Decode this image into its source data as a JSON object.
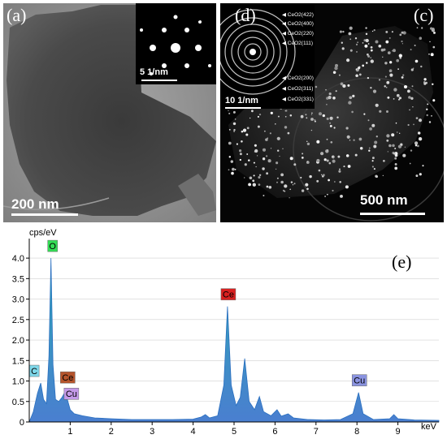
{
  "panel_a": {
    "label": "(a)",
    "scale": "200 nm"
  },
  "panel_b": {
    "label": "(b)",
    "scale": "5 1/nm"
  },
  "panel_c": {
    "label": "(c)",
    "scale": "500 nm"
  },
  "panel_d": {
    "label": "(d)",
    "scale": "10 1/nm",
    "rings": [
      "CeO2(422)",
      "CeO2(400)",
      "CeO2(220)",
      "CeO2(111)",
      "CeO2(200)",
      "CeO2(311)",
      "CeO2(331)"
    ]
  },
  "panel_e": {
    "label": "(e)"
  },
  "chart_data": {
    "type": "line",
    "title": "",
    "ylabel": "cps/eV",
    "xlabel": "keV",
    "xlim": [
      0,
      10
    ],
    "ylim": [
      0,
      4.2
    ],
    "xticks": [
      "1",
      "2",
      "3",
      "4",
      "5",
      "6",
      "7",
      "8",
      "9"
    ],
    "yticks": [
      "0",
      "0.5",
      "1.0",
      "1.5",
      "2.0",
      "2.5",
      "3.0",
      "3.5",
      "4.0"
    ],
    "peaks": [
      {
        "label": "C",
        "x": 0.28,
        "y": 0.95,
        "color": "#7fd8ea"
      },
      {
        "label": "O",
        "x": 0.53,
        "y": 4.0,
        "color": "#33dd55"
      },
      {
        "label": "Ce",
        "x": 0.88,
        "y": 0.75,
        "color": "#b5542c"
      },
      {
        "label": "Cu",
        "x": 0.93,
        "y": 0.55,
        "color": "#c49ae8"
      },
      {
        "label": "Ce",
        "x": 4.84,
        "y": 2.82,
        "color": "#d82020"
      },
      {
        "label": "Cu",
        "x": 8.04,
        "y": 0.72,
        "color": "#8a93e0"
      }
    ],
    "spectrum": [
      [
        0.0,
        0.0
      ],
      [
        0.1,
        0.25
      ],
      [
        0.2,
        0.7
      ],
      [
        0.28,
        0.95
      ],
      [
        0.35,
        0.55
      ],
      [
        0.42,
        0.45
      ],
      [
        0.48,
        1.6
      ],
      [
        0.53,
        4.0
      ],
      [
        0.58,
        1.4
      ],
      [
        0.64,
        0.55
      ],
      [
        0.72,
        0.5
      ],
      [
        0.8,
        0.6
      ],
      [
        0.88,
        0.75
      ],
      [
        0.93,
        0.55
      ],
      [
        1.0,
        0.3
      ],
      [
        1.1,
        0.2
      ],
      [
        1.3,
        0.15
      ],
      [
        1.6,
        0.1
      ],
      [
        2.0,
        0.08
      ],
      [
        2.5,
        0.06
      ],
      [
        3.0,
        0.06
      ],
      [
        3.5,
        0.06
      ],
      [
        4.0,
        0.07
      ],
      [
        4.2,
        0.12
      ],
      [
        4.3,
        0.18
      ],
      [
        4.4,
        0.1
      ],
      [
        4.6,
        0.15
      ],
      [
        4.75,
        0.9
      ],
      [
        4.84,
        2.82
      ],
      [
        4.93,
        0.9
      ],
      [
        5.05,
        0.4
      ],
      [
        5.15,
        0.6
      ],
      [
        5.26,
        1.55
      ],
      [
        5.37,
        0.5
      ],
      [
        5.5,
        0.3
      ],
      [
        5.62,
        0.62
      ],
      [
        5.72,
        0.25
      ],
      [
        5.9,
        0.15
      ],
      [
        6.05,
        0.3
      ],
      [
        6.15,
        0.14
      ],
      [
        6.32,
        0.2
      ],
      [
        6.45,
        0.1
      ],
      [
        6.8,
        0.06
      ],
      [
        7.2,
        0.05
      ],
      [
        7.6,
        0.06
      ],
      [
        7.9,
        0.2
      ],
      [
        8.04,
        0.72
      ],
      [
        8.15,
        0.2
      ],
      [
        8.4,
        0.06
      ],
      [
        8.8,
        0.08
      ],
      [
        8.9,
        0.18
      ],
      [
        9.0,
        0.08
      ],
      [
        9.4,
        0.05
      ],
      [
        10.0,
        0.04
      ]
    ]
  }
}
